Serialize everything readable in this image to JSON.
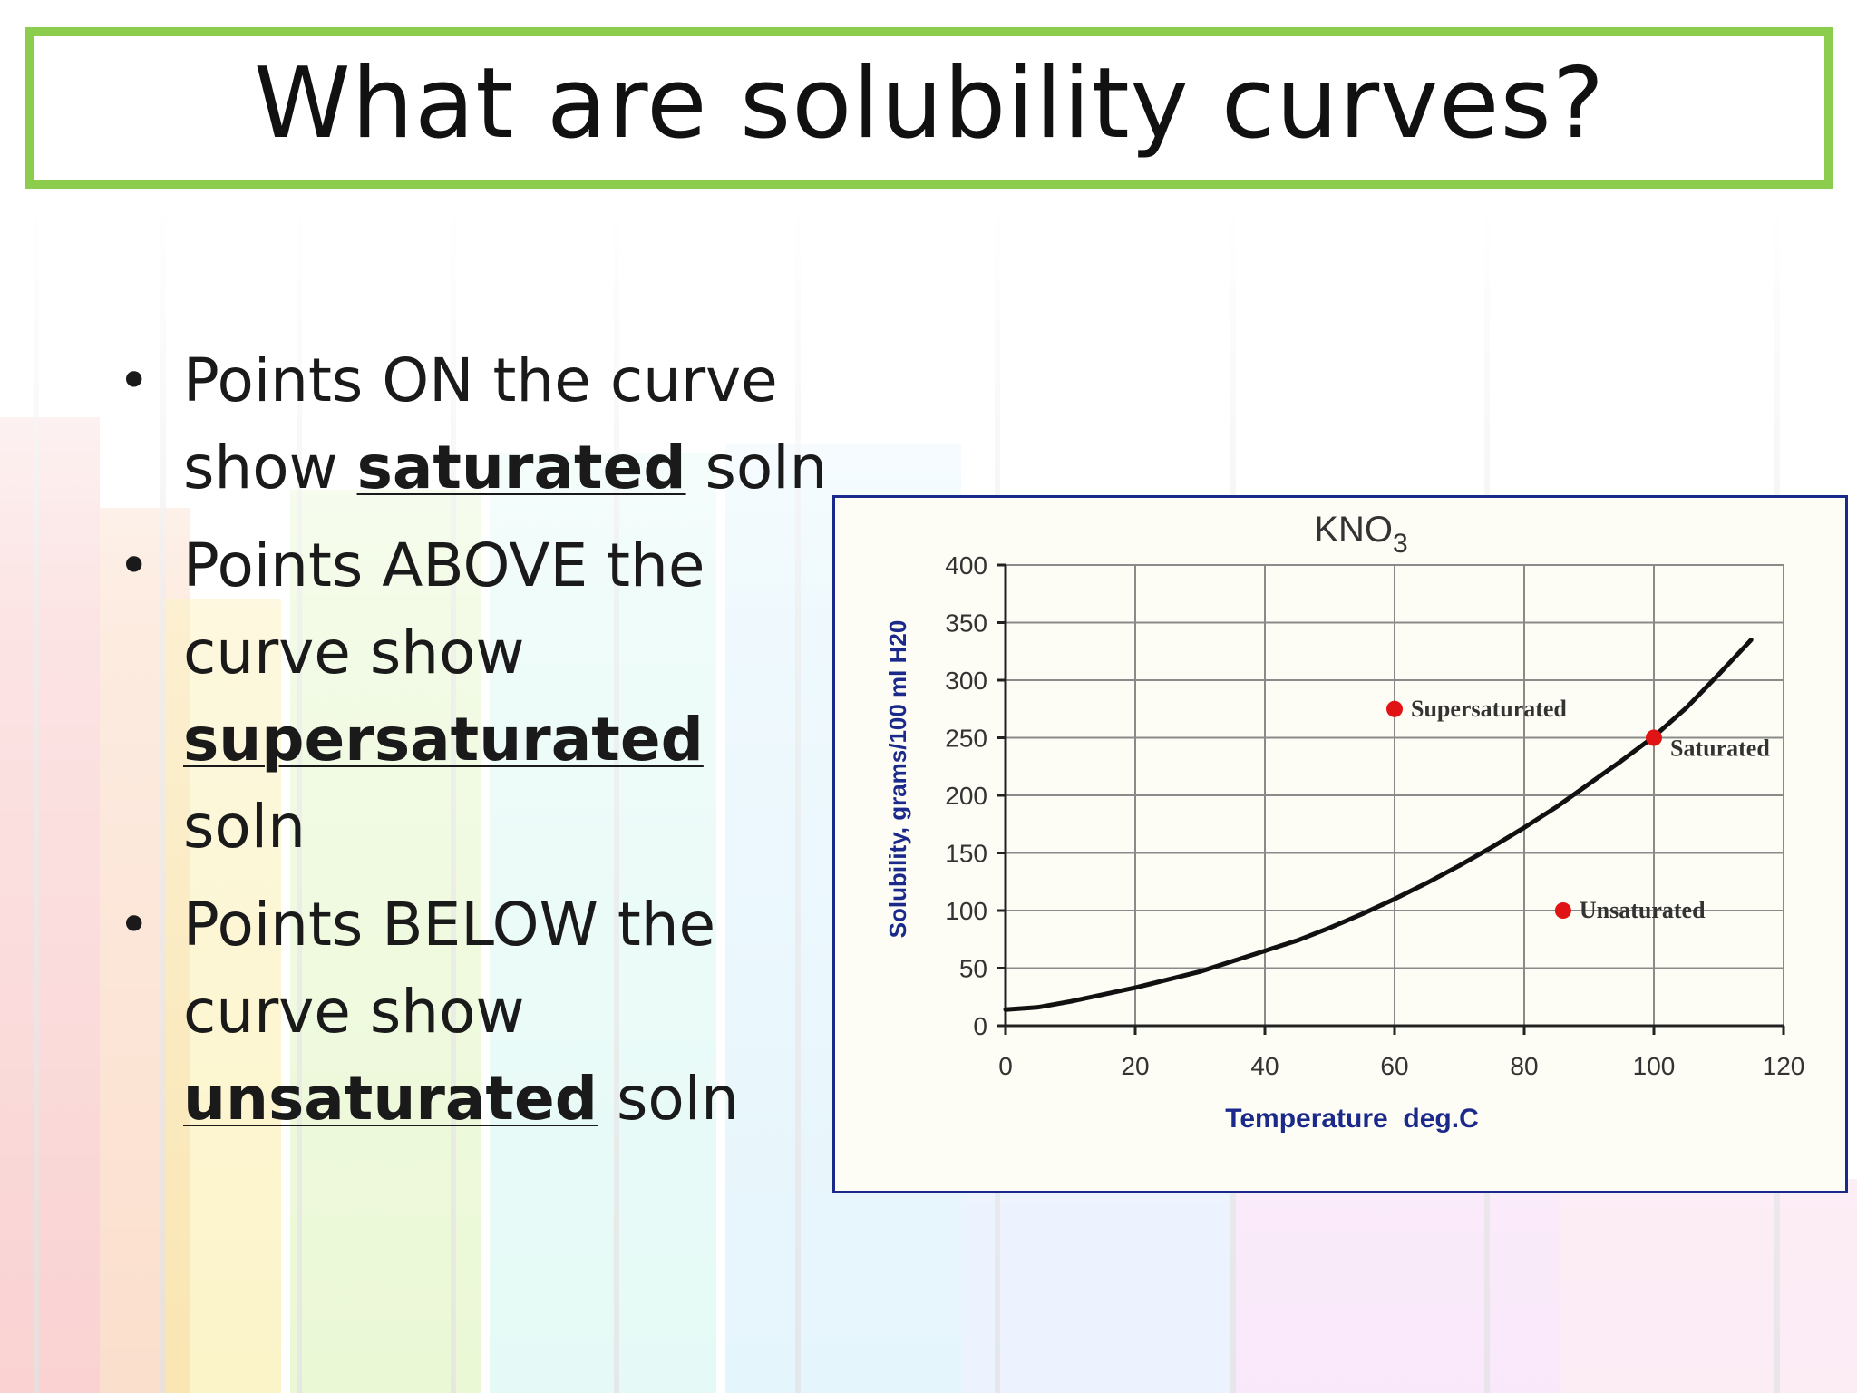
{
  "slide": {
    "title": "What are solubility curves?",
    "bullets": [
      {
        "before_line1": "Points ON the curve",
        "before_line2": "show ",
        "bold": "saturated",
        "after": " soln"
      },
      {
        "before_line1": "Points ABOVE the",
        "before_line2": "curve show",
        "bold": "supersaturated",
        "after": " soln"
      },
      {
        "before_line1": "Points BELOW the",
        "before_line2": "curve show",
        "bold": "unsaturated",
        "after": " soln"
      }
    ],
    "colors": {
      "title_border": "#8ccd4e",
      "chart_border": "#1b2a8a",
      "axis_label": "#1b2a8a",
      "point": "#e01414"
    }
  },
  "chart_data": {
    "type": "line",
    "title_main": "KNO",
    "title_sub": "3",
    "xlabel": "Temperature  deg.C",
    "ylabel": "Solubility, grams/100 ml H20",
    "xlim": [
      0,
      120
    ],
    "ylim": [
      0,
      400
    ],
    "x_ticks": [
      0,
      20,
      40,
      60,
      80,
      100,
      120
    ],
    "y_ticks": [
      0,
      50,
      100,
      150,
      200,
      250,
      300,
      350,
      400
    ],
    "grid": true,
    "series": [
      {
        "x": [
          0,
          5,
          10,
          15,
          20,
          25,
          30,
          35,
          40,
          45,
          50,
          55,
          60,
          65,
          70,
          75,
          80,
          85,
          90,
          95,
          100,
          105,
          110,
          115
        ],
        "values": [
          14,
          16,
          21,
          27,
          33,
          40,
          47,
          56,
          65,
          74,
          85,
          97,
          110,
          124,
          139,
          155,
          172,
          190,
          210,
          230,
          251,
          276,
          305,
          335
        ]
      }
    ],
    "annotations": [
      {
        "label": "Supersaturated",
        "x": 60,
        "y": 275
      },
      {
        "label": "Saturated",
        "x": 100,
        "y": 250
      },
      {
        "label": "Unsaturated",
        "x": 86,
        "y": 100
      }
    ]
  }
}
